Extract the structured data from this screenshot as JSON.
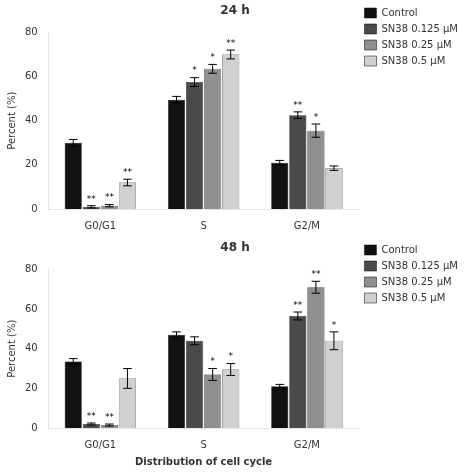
{
  "chart_data": [
    {
      "type": "bar",
      "title": "24 h",
      "categories": [
        "G0/G1",
        "S",
        "G2/M"
      ],
      "ylabel": "Percent (%)",
      "ylim": [
        0,
        80
      ],
      "yticks": [
        0,
        20,
        40,
        60,
        80
      ],
      "grid": false,
      "legend": "right",
      "series": [
        {
          "name": "Control",
          "color": "#111111",
          "values": [
            30.0,
            49.5,
            21.0
          ],
          "errors": [
            1.5,
            1.5,
            1.0
          ],
          "annotations": [
            null,
            null,
            null
          ]
        },
        {
          "name": "SN38 0.125 μM",
          "color": "#4a4a4a",
          "values": [
            1.0,
            57.5,
            42.5
          ],
          "errors": [
            0.5,
            2.0,
            1.5
          ],
          "annotations": [
            "**",
            "*",
            "**"
          ]
        },
        {
          "name": "SN38 0.25 μM",
          "color": "#909090",
          "values": [
            1.5,
            63.5,
            35.5
          ],
          "errors": [
            0.5,
            2.0,
            3.0
          ],
          "annotations": [
            "**",
            "*",
            "*"
          ]
        },
        {
          "name": "SN38 0.5 μM",
          "color": "#d0d0d0",
          "values": [
            12.0,
            70.0,
            18.5
          ],
          "errors": [
            1.5,
            2.0,
            1.0
          ],
          "annotations": [
            "**",
            "**",
            null
          ]
        }
      ]
    },
    {
      "type": "bar",
      "title": "48 h",
      "categories": [
        "G0/G1",
        "S",
        "G2/M"
      ],
      "xlabel": "Distribution of cell cycle",
      "ylabel": "Percent (%)",
      "ylim": [
        0,
        80
      ],
      "yticks": [
        0,
        20,
        40,
        60,
        80
      ],
      "grid": false,
      "legend": "right",
      "series": [
        {
          "name": "Control",
          "color": "#111111",
          "values": [
            33.5,
            47.0,
            21.0
          ],
          "errors": [
            1.5,
            1.5,
            1.0
          ],
          "annotations": [
            null,
            null,
            null
          ]
        },
        {
          "name": "SN38 0.125 μM",
          "color": "#4a4a4a",
          "values": [
            2.0,
            44.0,
            56.5
          ],
          "errors": [
            0.5,
            2.0,
            2.0
          ],
          "annotations": [
            "**",
            null,
            "**"
          ]
        },
        {
          "name": "SN38 0.25 μM",
          "color": "#909090",
          "values": [
            1.5,
            27.0,
            71.0
          ],
          "errors": [
            0.5,
            3.0,
            3.0
          ],
          "annotations": [
            "**",
            "*",
            "**"
          ]
        },
        {
          "name": "SN38 0.5 μM",
          "color": "#d0d0d0",
          "values": [
            25.0,
            29.5,
            44.0
          ],
          "errors": [
            5.0,
            3.0,
            4.5
          ],
          "annotations": [
            null,
            "*",
            "*"
          ]
        }
      ]
    }
  ]
}
